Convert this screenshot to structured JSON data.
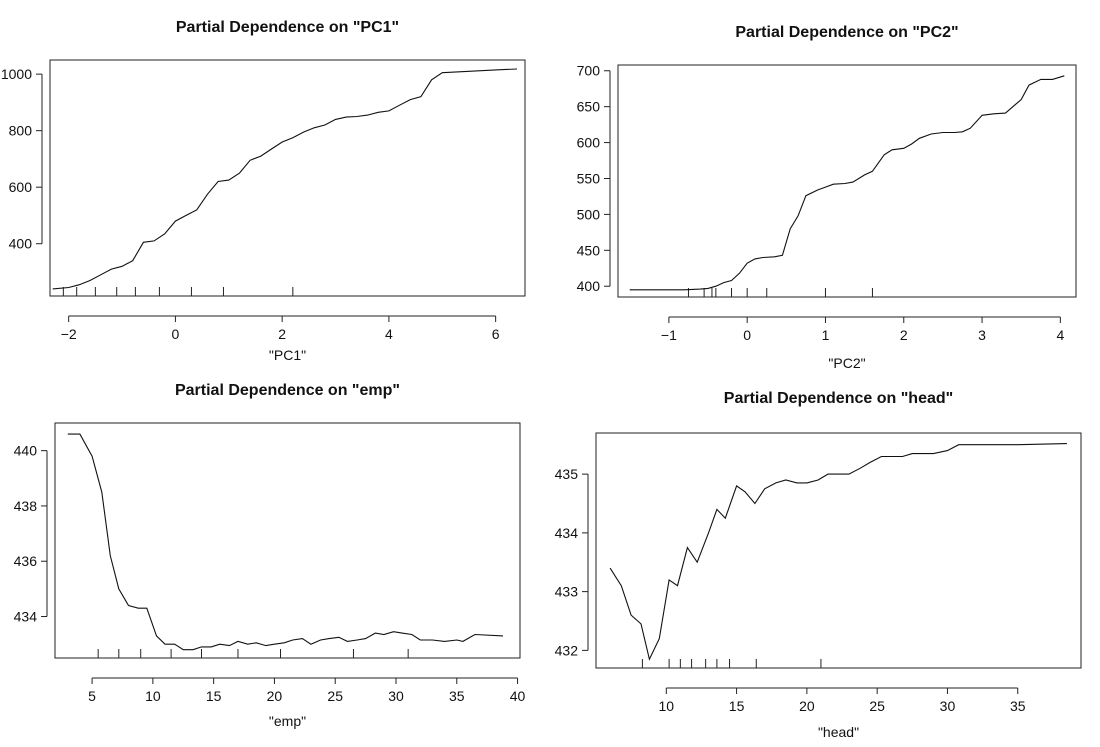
{
  "chart_data": [
    {
      "type": "line",
      "title": "Partial Dependence on \"PC1\"",
      "xlabel": "\"PC1\"",
      "ylabel": "",
      "xlim": [
        -2.35,
        6.55
      ],
      "ylim": [
        215,
        1050
      ],
      "xticks": [
        -2,
        0,
        2,
        4,
        6
      ],
      "xtick_labels": [
        "−2",
        "0",
        "2",
        "4",
        "6"
      ],
      "yticks": [
        400,
        600,
        800,
        1000
      ],
      "ytick_labels": [
        "400",
        "600",
        "800",
        "1000"
      ],
      "grid": false,
      "series": [
        {
          "x": [
            -2.3,
            -2.0,
            -1.8,
            -1.6,
            -1.4,
            -1.2,
            -1.0,
            -0.8,
            -0.6,
            -0.4,
            -0.2,
            0.0,
            0.2,
            0.4,
            0.6,
            0.8,
            1.0,
            1.2,
            1.4,
            1.6,
            1.8,
            2.0,
            2.2,
            2.4,
            2.6,
            2.8,
            3.0,
            3.2,
            3.4,
            3.6,
            3.8,
            4.0,
            4.2,
            4.4,
            4.6,
            4.8,
            5.0,
            5.5,
            6.0,
            6.4
          ],
          "y": [
            240,
            245,
            255,
            270,
            290,
            310,
            320,
            340,
            405,
            410,
            435,
            480,
            500,
            520,
            575,
            620,
            625,
            650,
            695,
            710,
            735,
            760,
            775,
            795,
            810,
            820,
            840,
            848,
            850,
            855,
            865,
            870,
            890,
            910,
            920,
            980,
            1005,
            1010,
            1015,
            1018
          ]
        }
      ],
      "rug": [
        -2.1,
        -1.85,
        -1.5,
        -1.1,
        -0.75,
        -0.3,
        0.3,
        0.9,
        2.2
      ]
    },
    {
      "type": "line",
      "title": "Partial Dependence on \"PC2\"",
      "xlabel": "\"PC2\"",
      "ylabel": "",
      "xlim": [
        -1.65,
        4.2
      ],
      "ylim": [
        385,
        708
      ],
      "xticks": [
        -1,
        0,
        1,
        2,
        3,
        4
      ],
      "xtick_labels": [
        "−1",
        "0",
        "1",
        "2",
        "3",
        "4"
      ],
      "yticks": [
        400,
        450,
        500,
        550,
        600,
        650,
        700
      ],
      "ytick_labels": [
        "400",
        "450",
        "500",
        "550",
        "600",
        "650",
        "700"
      ],
      "grid": false,
      "series": [
        {
          "x": [
            -1.5,
            -1.3,
            -1.0,
            -0.8,
            -0.6,
            -0.5,
            -0.4,
            -0.3,
            -0.2,
            -0.1,
            0.0,
            0.1,
            0.2,
            0.35,
            0.45,
            0.55,
            0.65,
            0.75,
            0.9,
            1.0,
            1.1,
            1.25,
            1.35,
            1.5,
            1.6,
            1.75,
            1.85,
            2.0,
            2.1,
            2.2,
            2.35,
            2.5,
            2.65,
            2.75,
            2.85,
            3.0,
            3.15,
            3.3,
            3.5,
            3.6,
            3.75,
            3.9,
            4.05
          ],
          "y": [
            395,
            395,
            395,
            395,
            396,
            397,
            400,
            405,
            408,
            418,
            432,
            438,
            440,
            441,
            443,
            480,
            498,
            526,
            534,
            538,
            542,
            543,
            545,
            555,
            560,
            583,
            590,
            592,
            598,
            606,
            612,
            614,
            614,
            615,
            620,
            638,
            640,
            641,
            660,
            680,
            688,
            688,
            693
          ]
        }
      ],
      "rug": [
        -0.75,
        -0.55,
        -0.45,
        -0.4,
        -0.2,
        0.0,
        0.25,
        1.0,
        1.6
      ]
    },
    {
      "type": "line",
      "title": "Partial Dependence on \"emp\"",
      "xlabel": "\"emp\"",
      "ylabel": "",
      "xlim": [
        1.95,
        40.2
      ],
      "ylim": [
        432.5,
        441.0
      ],
      "xticks": [
        5,
        10,
        15,
        20,
        25,
        30,
        35,
        40
      ],
      "xtick_labels": [
        "5",
        "10",
        "15",
        "20",
        "25",
        "30",
        "35",
        "40"
      ],
      "yticks": [
        434,
        436,
        438,
        440
      ],
      "ytick_labels": [
        "434",
        "436",
        "438",
        "440"
      ],
      "grid": false,
      "series": [
        {
          "x": [
            3.0,
            4.0,
            5.0,
            5.8,
            6.5,
            7.2,
            8.0,
            8.8,
            9.5,
            10.3,
            11.0,
            11.8,
            12.5,
            13.3,
            14.0,
            14.8,
            15.5,
            16.3,
            17.0,
            17.8,
            18.5,
            19.3,
            20.0,
            20.8,
            21.5,
            22.3,
            23.0,
            23.8,
            24.5,
            25.3,
            26.0,
            26.8,
            27.5,
            28.3,
            29.0,
            29.8,
            30.5,
            31.3,
            32.0,
            33.0,
            34.0,
            35.0,
            35.5,
            36.5,
            38.8
          ],
          "y": [
            440.6,
            440.6,
            439.8,
            438.5,
            436.2,
            435.0,
            434.4,
            434.3,
            434.3,
            433.3,
            433.0,
            433.0,
            432.8,
            432.8,
            432.9,
            432.9,
            433.0,
            432.95,
            433.1,
            433.0,
            433.05,
            432.95,
            433.0,
            433.05,
            433.15,
            433.2,
            433.0,
            433.15,
            433.2,
            433.25,
            433.1,
            433.15,
            433.2,
            433.4,
            433.35,
            433.45,
            433.4,
            433.35,
            433.15,
            433.15,
            433.1,
            433.15,
            433.1,
            433.35,
            433.3
          ]
        }
      ],
      "rug": [
        5.5,
        7.2,
        9.0,
        11.5,
        14.0,
        17.0,
        20.5,
        26.5,
        31.0
      ]
    },
    {
      "type": "line",
      "title": "Partial Dependence on \"head\"",
      "xlabel": "\"head\"",
      "ylabel": "",
      "xlim": [
        5.0,
        39.5
      ],
      "ylim": [
        431.7,
        435.7
      ],
      "xticks": [
        10,
        15,
        20,
        25,
        30,
        35
      ],
      "xtick_labels": [
        "10",
        "15",
        "20",
        "25",
        "30",
        "35"
      ],
      "yticks": [
        432,
        433,
        434,
        435
      ],
      "ytick_labels": [
        "432",
        "433",
        "434",
        "435"
      ],
      "grid": false,
      "series": [
        {
          "x": [
            6.0,
            6.8,
            7.5,
            8.2,
            8.8,
            9.5,
            10.2,
            10.8,
            11.5,
            12.2,
            13.0,
            13.6,
            14.2,
            15.0,
            15.6,
            16.3,
            17.0,
            17.8,
            18.5,
            19.3,
            20.0,
            20.8,
            21.5,
            22.3,
            23.0,
            23.8,
            24.5,
            25.3,
            26.0,
            26.8,
            27.5,
            28.3,
            29.0,
            30.0,
            30.8,
            31.5,
            33.0,
            35.0,
            38.5
          ],
          "y": [
            433.4,
            433.1,
            432.6,
            432.45,
            431.85,
            432.2,
            433.2,
            433.1,
            433.75,
            433.5,
            434.0,
            434.4,
            434.25,
            434.8,
            434.7,
            434.5,
            434.75,
            434.85,
            434.9,
            434.85,
            434.85,
            434.9,
            435.0,
            435.0,
            435.0,
            435.1,
            435.2,
            435.3,
            435.3,
            435.3,
            435.35,
            435.35,
            435.35,
            435.4,
            435.5,
            435.5,
            435.5,
            435.5,
            435.52
          ]
        }
      ],
      "rug": [
        8.3,
        10.2,
        11.0,
        11.8,
        12.8,
        13.6,
        14.5,
        16.4,
        21.0
      ]
    }
  ]
}
